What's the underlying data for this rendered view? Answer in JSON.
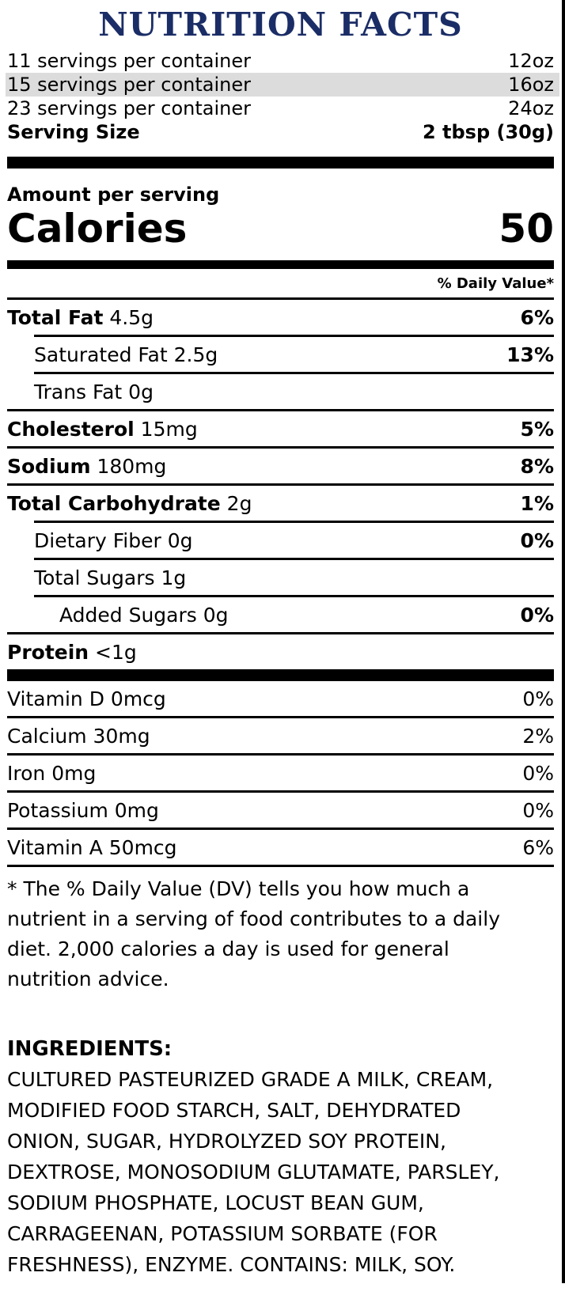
{
  "colors": {
    "title": "#1b2d66",
    "highlight": "#dcdcdc"
  },
  "title": "NUTRITION FACTS",
  "serving_options": [
    {
      "label": "11 servings per container",
      "size": "12oz",
      "selected": false
    },
    {
      "label": "15 servings per container",
      "size": "16oz",
      "selected": true
    },
    {
      "label": "23 servings per container",
      "size": "24oz",
      "selected": false
    }
  ],
  "serving_size": {
    "label": "Serving Size",
    "value": "2 tbsp (30g)"
  },
  "amount_per_serving_label": "Amount per serving",
  "calories": {
    "label": "Calories",
    "value": "50"
  },
  "daily_value_header": "% Daily Value*",
  "nutrients": [
    {
      "bold": "Total Fat",
      "rest": " 4.5g",
      "percent": "6%"
    },
    {
      "bold": "",
      "rest": "Saturated Fat 2.5g",
      "percent": "13%"
    },
    {
      "bold": "",
      "rest": "Trans Fat 0g",
      "percent": ""
    },
    {
      "bold": "Cholesterol",
      "rest": " 15mg",
      "percent": "5%"
    },
    {
      "bold": "Sodium",
      "rest": " 180mg",
      "percent": "8%"
    },
    {
      "bold": "Total Carbohydrate",
      "rest": " 2g",
      "percent": "1%"
    },
    {
      "bold": "",
      "rest": "Dietary Fiber 0g",
      "percent": "0%"
    },
    {
      "bold": "",
      "rest": "Total Sugars 1g",
      "percent": ""
    },
    {
      "bold": "",
      "rest": "Added Sugars 0g",
      "percent": "0%"
    },
    {
      "bold": "Protein",
      "rest": " <1g",
      "percent": ""
    }
  ],
  "vitamins": [
    {
      "label": "Vitamin D 0mcg",
      "percent": "0%"
    },
    {
      "label": "Calcium 30mg",
      "percent": "2%"
    },
    {
      "label": "Iron 0mg",
      "percent": "0%"
    },
    {
      "label": "Potassium 0mg",
      "percent": "0%"
    },
    {
      "label": "Vitamin A 50mcg",
      "percent": "6%"
    }
  ],
  "footnote_lines": [
    "* The % Daily Value (DV) tells you how much a",
    "nutrient in a serving of food contributes to a daily",
    "diet. 2,000 calories a day is used for general",
    "nutrition advice."
  ],
  "ingredients": {
    "heading": "INGREDIENTS:",
    "lines": [
      "CULTURED PASTEURIZED GRADE A MILK, CREAM,",
      "MODIFIED FOOD STARCH, SALT, DEHYDRATED",
      "ONION, SUGAR, HYDROLYZED SOY PROTEIN,",
      "DEXTROSE, MONOSODIUM GLUTAMATE, PARSLEY,",
      "SODIUM PHOSPHATE, LOCUST BEAN GUM,",
      "CARRAGEENAN, POTASSIUM SORBATE (FOR",
      "FRESHNESS), ENZYME. CONTAINS: MILK, SOY."
    ]
  }
}
